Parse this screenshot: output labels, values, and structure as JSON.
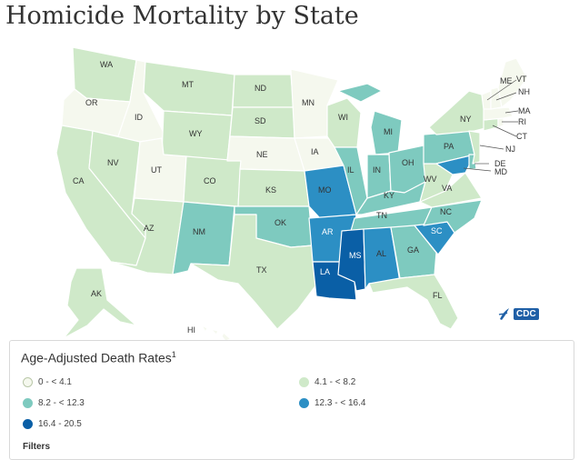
{
  "title": "Homicide Mortality by State",
  "legend": {
    "title": "Age-Adjusted Death Rates",
    "footnote": "1",
    "filters_label": "Filters",
    "classes": [
      {
        "label": "0 - < 4.1",
        "color": "#f5f8ee"
      },
      {
        "label": "4.1 - < 8.2",
        "color": "#cfe9c9"
      },
      {
        "label": "8.2 - < 12.3",
        "color": "#7ecabf"
      },
      {
        "label": "12.3 - < 16.4",
        "color": "#2c8fc4"
      },
      {
        "label": "16.4 - 20.5",
        "color": "#0a5fa6"
      }
    ]
  },
  "logo_text": "CDC",
  "states": {
    "WA": 1,
    "OR": 0,
    "ID": 0,
    "MT": 1,
    "WY": 1,
    "CA": 1,
    "NV": 1,
    "UT": 0,
    "AZ": 1,
    "CO": 1,
    "NM": 2,
    "ND": 1,
    "SD": 1,
    "NE": 0,
    "KS": 1,
    "OK": 2,
    "TX": 1,
    "MN": 0,
    "IA": 0,
    "MO": 3,
    "AR": 3,
    "LA": 4,
    "WI": 1,
    "IL": 2,
    "MI": 2,
    "IN": 2,
    "OH": 2,
    "KY": 2,
    "TN": 2,
    "MS": 4,
    "AL": 3,
    "GA": 2,
    "FL": 1,
    "SC": 3,
    "NC": 2,
    "VA": 1,
    "WV": 1,
    "PA": 2,
    "NY": 1,
    "ME": 0,
    "VT": 0,
    "NH": 0,
    "MA": 0,
    "RI": 0,
    "CT": 1,
    "NJ": 1,
    "DE": 2,
    "MD": 3,
    "AK": 1,
    "HI": 0
  }
}
